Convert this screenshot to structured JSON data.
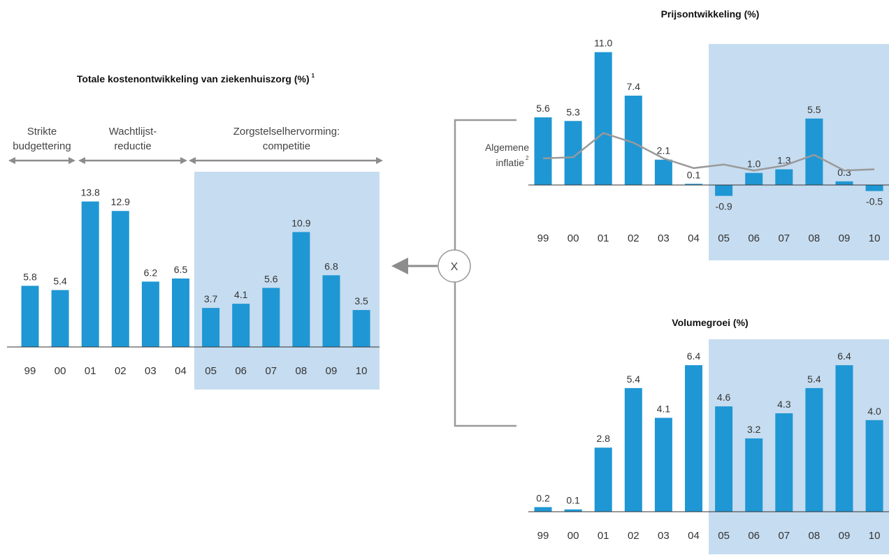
{
  "chart_data": [
    {
      "type": "bar",
      "title": "Totale kostenontwikkeling van ziekenhuiszorg (%)",
      "title_footnote": "1",
      "categories": [
        "99",
        "00",
        "01",
        "02",
        "03",
        "04",
        "05",
        "06",
        "07",
        "08",
        "09",
        "10"
      ],
      "values": [
        5.8,
        5.4,
        13.8,
        12.9,
        6.2,
        6.5,
        3.7,
        4.1,
        5.6,
        10.9,
        6.8,
        3.5
      ],
      "value_labels": [
        "5.8",
        "5.4",
        "13.8",
        "12.9",
        "6.2",
        "6.5",
        "3.7",
        "4.1",
        "5.6",
        "10.9",
        "6.8",
        "3.5"
      ],
      "highlight_from_category": "05",
      "periods": [
        {
          "line1": "Strikte",
          "line2": "budgettering"
        },
        {
          "line1": "Wachtlijst-",
          "line2": "reductie"
        },
        {
          "line1": "Zorgstelselhervorming:",
          "line2": "competitie"
        }
      ],
      "bar_color": "#1f97d4",
      "highlight_color": "#c6dcf0"
    },
    {
      "type": "bar",
      "title": "Prijsontwikkeling (%)",
      "categories": [
        "99",
        "00",
        "01",
        "02",
        "03",
        "04",
        "05",
        "06",
        "07",
        "08",
        "09",
        "10"
      ],
      "values": [
        5.6,
        5.3,
        11.0,
        7.4,
        2.1,
        0.1,
        -0.9,
        1.0,
        1.3,
        5.5,
        0.3,
        -0.5
      ],
      "value_labels": [
        "5.6",
        "5.3",
        "11.0",
        "7.4",
        "2.1",
        "0.1",
        "-0.9",
        "1.0",
        "1.3",
        "5.5",
        "0.3",
        "-0.5"
      ],
      "highlight_from_category": "05",
      "overlay_line": {
        "label_line1": "Algemene",
        "label_line2": "inflatie",
        "footnote": "2",
        "values": [
          2.2,
          2.3,
          4.3,
          3.5,
          2.2,
          1.4,
          1.7,
          1.2,
          1.6,
          2.5,
          1.2,
          1.3
        ],
        "color": "#999999"
      },
      "bar_color": "#1f97d4",
      "highlight_color": "#c6dcf0"
    },
    {
      "type": "bar",
      "title": "Volumegroei (%)",
      "categories": [
        "99",
        "00",
        "01",
        "02",
        "03",
        "04",
        "05",
        "06",
        "07",
        "08",
        "09",
        "10"
      ],
      "values": [
        0.2,
        0.1,
        2.8,
        5.4,
        4.1,
        6.4,
        4.6,
        3.2,
        4.3,
        5.4,
        6.4,
        4.0
      ],
      "value_labels": [
        "0.2",
        "0.1",
        "2.8",
        "5.4",
        "4.1",
        "6.4",
        "4.6",
        "3.2",
        "4.3",
        "5.4",
        "6.4",
        "4.0"
      ],
      "highlight_from_category": "05",
      "bar_color": "#1f97d4",
      "highlight_color": "#c6dcf0"
    }
  ],
  "operator": {
    "symbol": "X",
    "icon": "multiply-circle-icon"
  },
  "colors": {
    "arrow": "#8c8c8c",
    "connector": "#999999",
    "axis": "#333333"
  }
}
